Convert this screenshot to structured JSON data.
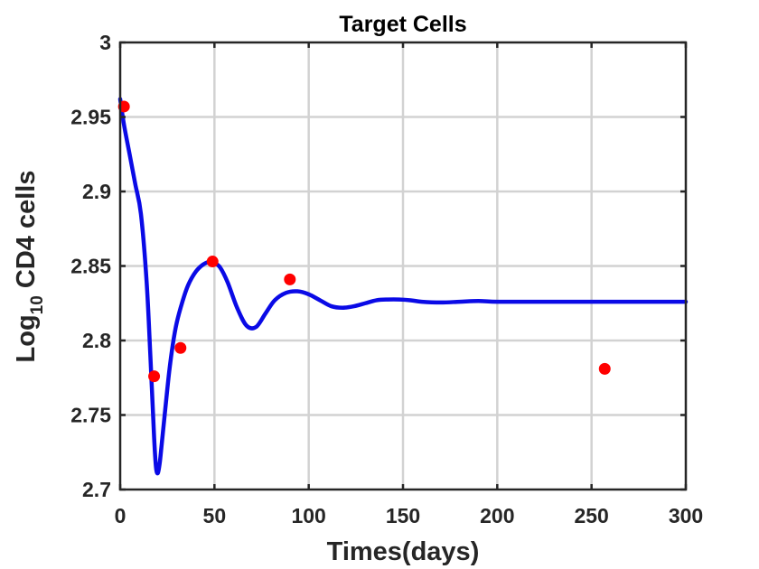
{
  "chart_data": {
    "type": "line",
    "title": "Target Cells",
    "xlabel": "Times(days)",
    "ylabel_main": "Log",
    "ylabel_sub": "10",
    "ylabel_rest": " CD4 cells",
    "xlim": [
      0,
      300
    ],
    "ylim": [
      2.7,
      3.0
    ],
    "xticks": [
      0,
      50,
      100,
      150,
      200,
      250,
      300
    ],
    "xtick_labels": [
      "0",
      "50",
      "100",
      "150",
      "200",
      "250",
      "300"
    ],
    "yticks": [
      2.7,
      2.75,
      2.8,
      2.85,
      2.9,
      2.95,
      3.0
    ],
    "ytick_labels": [
      "2.7",
      "2.75",
      "2.8",
      "2.85",
      "2.9",
      "2.95",
      "3"
    ],
    "grid": true,
    "series": [
      {
        "style": "line",
        "color": "#0a0ae6",
        "x": [
          0,
          2,
          5,
          8,
          11,
          14,
          16,
          18,
          19,
          20,
          21,
          22,
          24,
          26,
          28,
          30,
          33,
          36,
          40,
          44,
          48,
          50,
          53,
          57,
          62,
          67,
          72,
          77,
          82,
          88,
          94,
          100,
          106,
          112,
          118,
          124,
          130,
          136,
          142,
          148,
          154,
          160,
          170,
          180,
          190,
          200,
          220,
          240,
          260,
          280,
          300
        ],
        "y": [
          2.962,
          2.945,
          2.925,
          2.905,
          2.885,
          2.84,
          2.79,
          2.735,
          2.715,
          2.711,
          2.718,
          2.73,
          2.755,
          2.779,
          2.798,
          2.812,
          2.826,
          2.837,
          2.846,
          2.851,
          2.853,
          2.852,
          2.849,
          2.839,
          2.822,
          2.81,
          2.809,
          2.818,
          2.827,
          2.832,
          2.833,
          2.831,
          2.827,
          2.823,
          2.822,
          2.823,
          2.825,
          2.827,
          2.8275,
          2.8275,
          2.827,
          2.826,
          2.8255,
          2.826,
          2.8265,
          2.826,
          2.826,
          2.826,
          2.826,
          2.826,
          2.826
        ]
      },
      {
        "style": "scatter",
        "color": "#ff0000",
        "x": [
          2,
          18,
          32,
          49,
          90,
          257
        ],
        "y": [
          2.957,
          2.776,
          2.795,
          2.853,
          2.841,
          2.781
        ]
      }
    ]
  }
}
